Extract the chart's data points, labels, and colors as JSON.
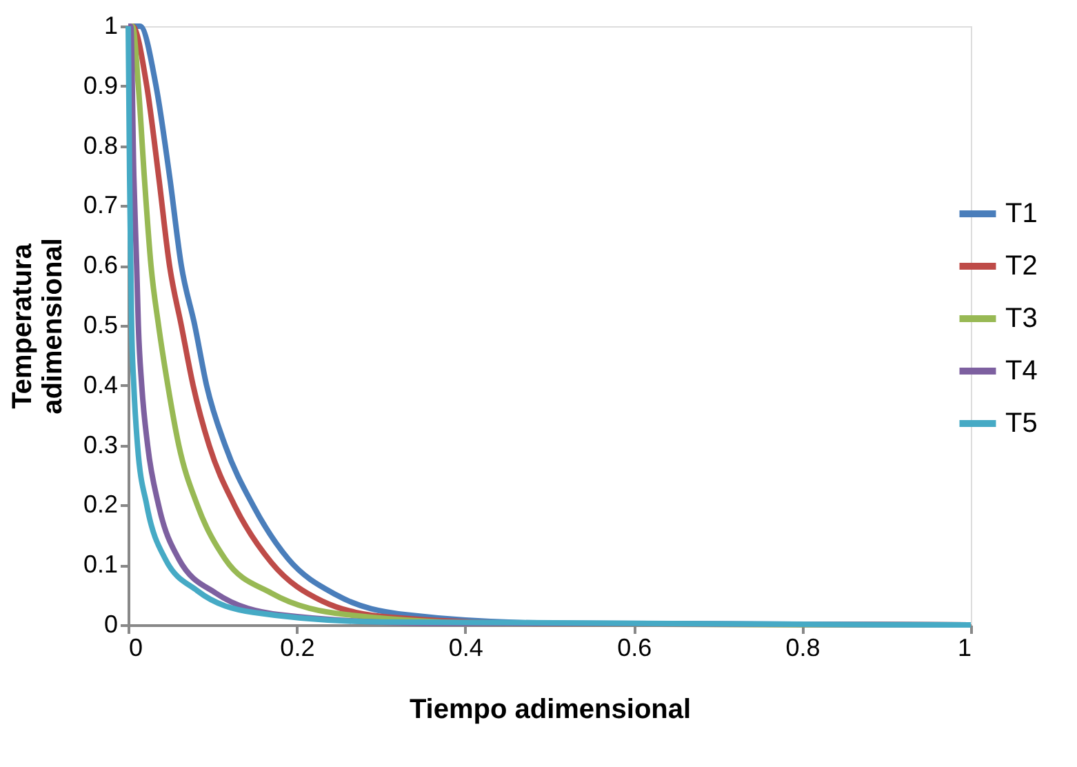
{
  "chart_data": {
    "type": "line",
    "xlabel": "Tiempo adimensional",
    "ylabel": "Temperatura adimensional",
    "xlim": [
      0,
      1
    ],
    "ylim": [
      0,
      1
    ],
    "xticks": [
      0,
      0.2,
      0.4,
      0.6,
      0.8,
      1
    ],
    "yticks": [
      0,
      0.1,
      0.2,
      0.3,
      0.4,
      0.5,
      0.6,
      0.7,
      0.8,
      0.9,
      1
    ],
    "grid": false,
    "legend": "right",
    "marker": "none",
    "line_style": "solid",
    "series": [
      {
        "name": "T1",
        "color": "#4a7ebb",
        "x": [
          0,
          0.014,
          0.033,
          0.049,
          0.063,
          0.079,
          0.093,
          0.115,
          0.148,
          0.19,
          0.247,
          0.33,
          0.5,
          1
        ],
        "values": [
          1,
          1,
          0.9,
          0.75,
          0.6,
          0.5,
          0.4,
          0.3,
          0.2,
          0.11,
          0.05,
          0.017,
          0.003,
          0
        ]
      },
      {
        "name": "T2",
        "color": "#be4b48",
        "x": [
          0,
          0.005,
          0.022,
          0.036,
          0.049,
          0.063,
          0.077,
          0.096,
          0.126,
          0.17,
          0.23,
          0.31,
          0.5,
          1
        ],
        "values": [
          1,
          1,
          0.9,
          0.75,
          0.6,
          0.5,
          0.4,
          0.3,
          0.2,
          0.104,
          0.04,
          0.013,
          0.002,
          0
        ]
      },
      {
        "name": "T3",
        "color": "#98b954",
        "x": [
          0,
          0.005,
          0.012,
          0.019,
          0.027,
          0.036,
          0.047,
          0.06,
          0.082,
          0.115,
          0.17,
          0.26,
          0.45,
          1
        ],
        "values": [
          1,
          1,
          0.9,
          0.75,
          0.6,
          0.5,
          0.4,
          0.3,
          0.2,
          0.11,
          0.053,
          0.017,
          0.002,
          0
        ]
      },
      {
        "name": "T4",
        "color": "#7d60a0",
        "x": [
          0,
          0.003,
          0.0066,
          0.01,
          0.012,
          0.016,
          0.023,
          0.036,
          0.06,
          0.104,
          0.18,
          0.35,
          1
        ],
        "values": [
          1,
          1,
          0.75,
          0.6,
          0.5,
          0.4,
          0.3,
          0.2,
          0.11,
          0.053,
          0.017,
          0.003,
          0
        ]
      },
      {
        "name": "T5",
        "color": "#46aac5",
        "x": [
          0,
          0.0016,
          0.003,
          0.004,
          0.0066,
          0.011,
          0.022,
          0.044,
          0.082,
          0.148,
          0.3,
          1
        ],
        "values": [
          1,
          0.75,
          0.6,
          0.5,
          0.4,
          0.3,
          0.2,
          0.11,
          0.057,
          0.021,
          0.005,
          0
        ]
      }
    ]
  }
}
